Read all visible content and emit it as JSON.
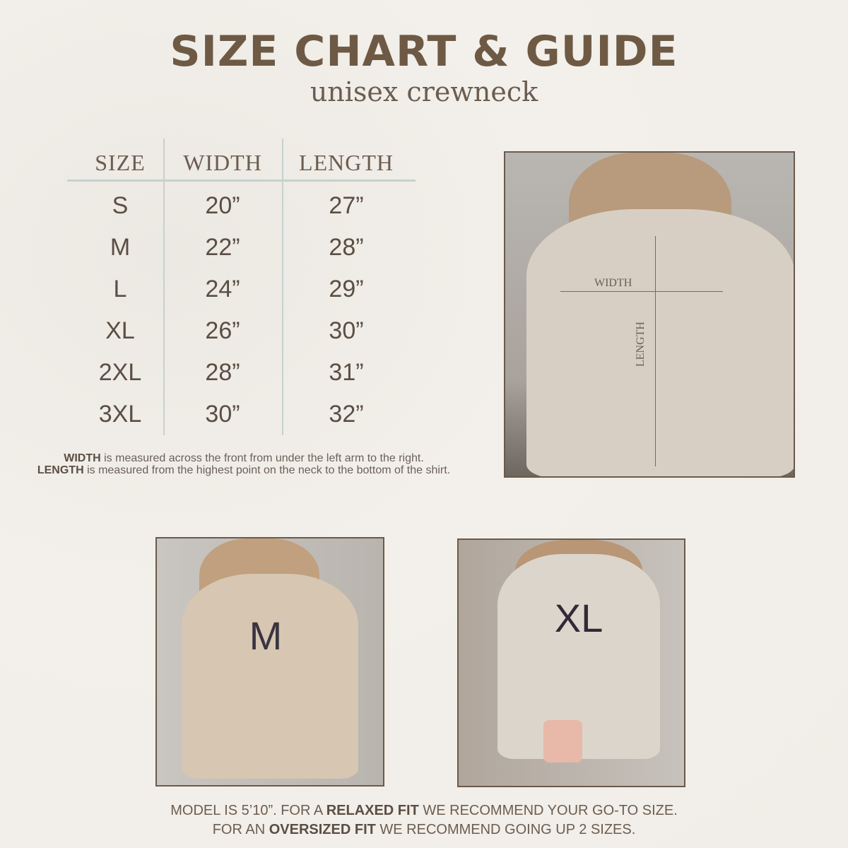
{
  "header": {
    "title": "SIZE CHART & GUIDE",
    "subtitle": "unisex crewneck"
  },
  "table": {
    "headers": [
      "SIZE",
      "WIDTH",
      "LENGTH"
    ],
    "rows": [
      [
        "S",
        "20”",
        "27”"
      ],
      [
        "M",
        "22”",
        "28”"
      ],
      [
        "L",
        "24”",
        "29”"
      ],
      [
        "XL",
        "26”",
        "30”"
      ],
      [
        "2XL",
        "28”",
        "31”"
      ],
      [
        "3XL",
        "30”",
        "32”"
      ]
    ]
  },
  "notes": {
    "width_label": "WIDTH",
    "width_text": " is measured across the front from under the left arm to the right.",
    "length_label": "LENGTH",
    "length_text": " is measured from the highest point on the neck to the bottom of the shirt."
  },
  "photos": {
    "measure": {
      "width_label": "WIDTH",
      "length_label": "LENGTH"
    },
    "medium": {
      "label": "M"
    },
    "xlarge": {
      "label": "XL"
    }
  },
  "footer": {
    "line1_a": "MODEL IS 5’10”. FOR A ",
    "line1_b": "RELAXED FIT",
    "line1_c": " WE RECOMMEND YOUR GO-TO SIZE.",
    "line2_a": "FOR AN ",
    "line2_b": "OVERSIZED FIT",
    "line2_c": " WE RECOMMEND GOING UP 2 SIZES."
  },
  "colors": {
    "title": "#6e5a44",
    "text": "#5a4e44",
    "rule": "#c5d2cd",
    "sweater": "#d8cfc4"
  }
}
